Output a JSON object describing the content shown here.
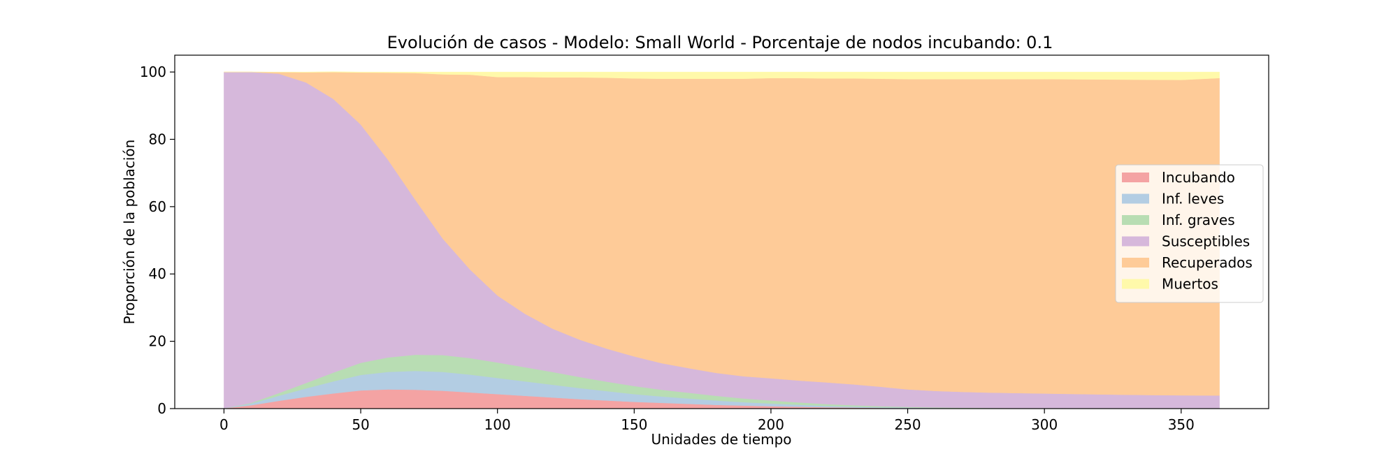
{
  "chart_data": {
    "type": "area",
    "stacked": true,
    "title": "Evolución de casos - Modelo: Small World - Porcentaje de nodos incubando: 0.1",
    "xlabel": "Unidades de tiempo",
    "ylabel": "Proporción de la población",
    "xlim": [
      -18,
      382
    ],
    "ylim": [
      0,
      105
    ],
    "xticks": [
      0,
      50,
      100,
      150,
      200,
      250,
      300,
      350
    ],
    "yticks": [
      0,
      20,
      40,
      60,
      80,
      100
    ],
    "grid": false,
    "legend_position": "center-right",
    "x": [
      0,
      10,
      20,
      30,
      40,
      50,
      60,
      70,
      80,
      90,
      100,
      110,
      120,
      130,
      140,
      150,
      160,
      170,
      180,
      190,
      200,
      210,
      220,
      230,
      240,
      250,
      260,
      270,
      280,
      290,
      300,
      310,
      320,
      330,
      340,
      350,
      364
    ],
    "series": [
      {
        "name": "Incubando",
        "color": "#f4a3a3",
        "values": [
          0.1,
          1.0,
          2.3,
          3.5,
          4.5,
          5.4,
          5.7,
          5.6,
          5.3,
          4.8,
          4.3,
          3.8,
          3.3,
          2.8,
          2.4,
          2.0,
          1.7,
          1.4,
          1.1,
          0.9,
          0.7,
          0.55,
          0.4,
          0.3,
          0.2,
          0.15,
          0.1,
          0.08,
          0.06,
          0.05,
          0.04,
          0.03,
          0.02,
          0.02,
          0.01,
          0.01,
          0.0
        ]
      },
      {
        "name": "Inf. leves",
        "color": "#b3cde3",
        "values": [
          0.0,
          0.5,
          1.5,
          2.5,
          3.6,
          4.6,
          5.2,
          5.6,
          5.6,
          5.3,
          4.8,
          4.3,
          3.8,
          3.3,
          2.8,
          2.3,
          1.9,
          1.6,
          1.3,
          1.0,
          0.8,
          0.6,
          0.4,
          0.3,
          0.2,
          0.15,
          0.1,
          0.08,
          0.06,
          0.05,
          0.04,
          0.03,
          0.02,
          0.02,
          0.01,
          0.01,
          0.0
        ]
      },
      {
        "name": "Inf. graves",
        "color": "#b8ddb3",
        "values": [
          0.0,
          0.2,
          0.8,
          1.6,
          2.6,
          3.6,
          4.3,
          4.8,
          5.0,
          4.9,
          4.6,
          4.2,
          3.8,
          3.3,
          2.8,
          2.4,
          2.0,
          1.7,
          1.4,
          1.1,
          0.9,
          0.7,
          0.55,
          0.4,
          0.3,
          0.2,
          0.15,
          0.1,
          0.08,
          0.06,
          0.05,
          0.04,
          0.03,
          0.02,
          0.02,
          0.01,
          0.0
        ]
      },
      {
        "name": "Susceptibles",
        "color": "#d6b8db",
        "values": [
          99.9,
          98.3,
          94.9,
          89.3,
          81.3,
          70.8,
          58.7,
          46.0,
          34.6,
          26.3,
          19.9,
          15.9,
          12.9,
          11.1,
          9.8,
          8.8,
          7.9,
          7.3,
          6.8,
          6.6,
          6.6,
          6.5,
          6.45,
          6.2,
          5.8,
          5.2,
          4.9,
          4.7,
          4.55,
          4.45,
          4.35,
          4.25,
          4.15,
          4.05,
          3.98,
          3.92,
          3.9
        ]
      },
      {
        "name": "Recuperados",
        "color": "#fecb98",
        "values": [
          0.0,
          0.0,
          0.45,
          3.0,
          7.95,
          15.45,
          25.9,
          37.7,
          48.8,
          57.9,
          64.9,
          70.3,
          74.6,
          77.9,
          80.5,
          82.6,
          84.5,
          86.0,
          87.4,
          88.4,
          89.2,
          89.85,
          90.3,
          90.9,
          91.5,
          92.2,
          92.65,
          92.94,
          93.15,
          93.29,
          93.42,
          93.5,
          93.58,
          93.63,
          93.68,
          93.7,
          94.3
        ]
      },
      {
        "name": "Muertos",
        "color": "#fff9aa",
        "values": [
          0.0,
          0.0,
          0.05,
          0.1,
          0.15,
          0.15,
          0.2,
          0.3,
          0.7,
          0.8,
          1.5,
          1.5,
          1.6,
          1.6,
          1.7,
          1.9,
          2.0,
          2.0,
          2.0,
          2.0,
          1.8,
          1.8,
          1.9,
          1.9,
          2.0,
          2.1,
          2.1,
          2.1,
          2.1,
          2.1,
          2.1,
          2.15,
          2.2,
          2.26,
          2.3,
          2.35,
          1.8
        ]
      }
    ]
  }
}
